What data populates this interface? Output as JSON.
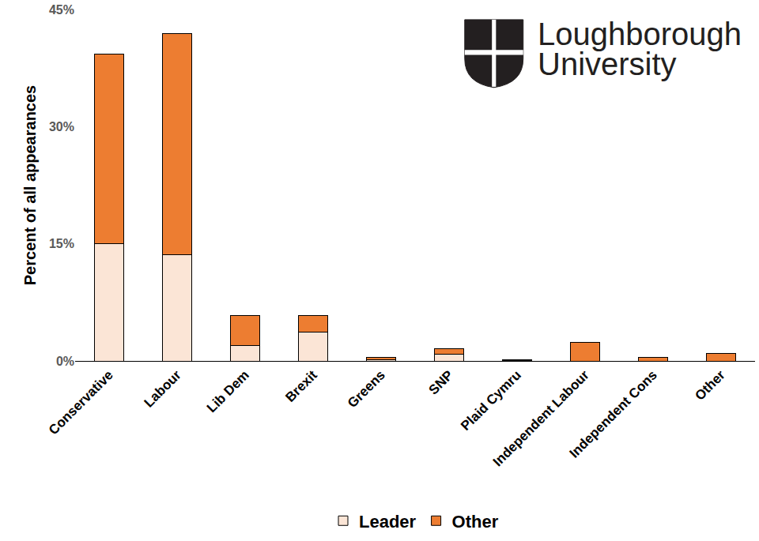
{
  "chart_data": {
    "type": "bar",
    "stacked": true,
    "y_label": "Percent of all appearances",
    "annotations": [
      "Loughborough",
      "University"
    ],
    "categories": [
      "Conservative",
      "Labour",
      "Lib Dem",
      "Brexit",
      "Greens",
      "SNP",
      "Plaid Cymru",
      "Independent Labour",
      "Independent Cons",
      "Other"
    ],
    "series": [
      {
        "name": "Leader",
        "color": "#fbe5d6",
        "values": [
          15.0,
          13.6,
          2.0,
          3.7,
          0.2,
          0.9,
          0.1,
          0,
          0,
          0
        ]
      },
      {
        "name": "Other",
        "color": "#ed7d31",
        "values": [
          24.3,
          28.3,
          3.8,
          2.1,
          0.3,
          0.7,
          0.1,
          2.4,
          0.5,
          1.0
        ]
      }
    ],
    "ylim": [
      0,
      45
    ],
    "yticks": [
      {
        "value": 0,
        "label": "0%"
      },
      {
        "value": 15,
        "label": "15%"
      },
      {
        "value": 30,
        "label": "30%"
      },
      {
        "value": 45,
        "label": "45%"
      }
    ],
    "grid": false,
    "legend": "bottom"
  }
}
